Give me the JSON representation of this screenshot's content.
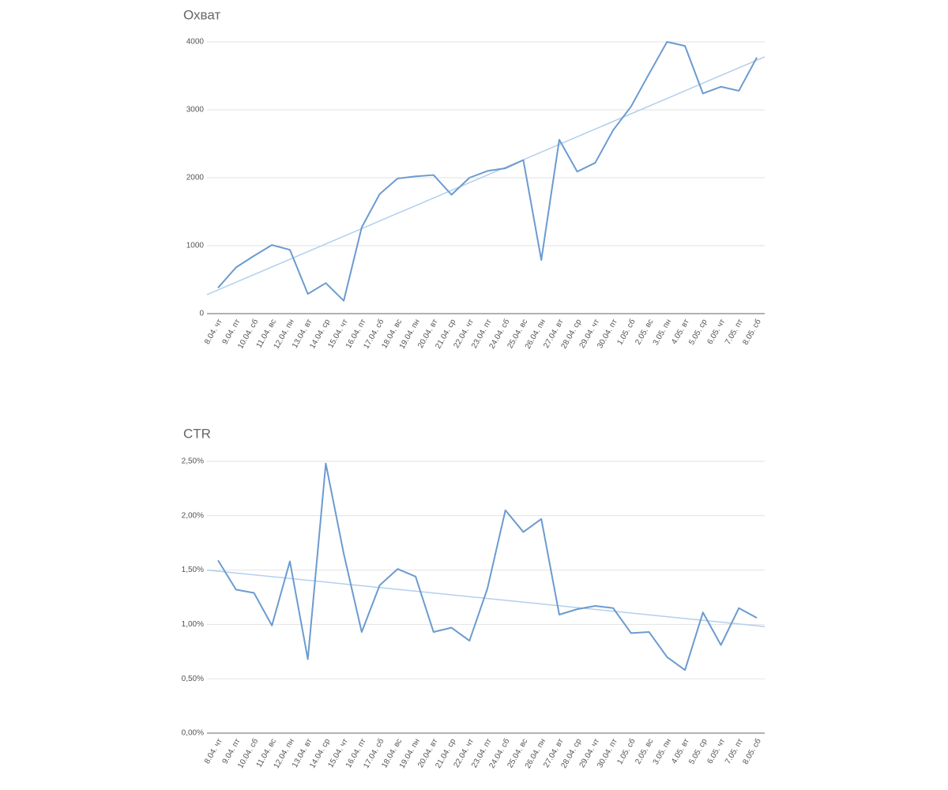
{
  "chart_data": [
    {
      "type": "line",
      "title": "Охват",
      "categories": [
        "8.04. чт",
        "9.04. пт",
        "10.04. сб",
        "11.04. вс",
        "12.04. пн",
        "13.04. вт",
        "14.04. ср",
        "15.04. чт",
        "16.04. пт",
        "17.04. сб",
        "18.04. вс",
        "19.04. пн",
        "20.04. вт",
        "21.04. ср",
        "22.04. чт",
        "23.04. пт",
        "24.04. сб",
        "25.04. вс",
        "26.04. пн",
        "27.04. вт",
        "28.04. ср",
        "29.04. чт",
        "30.04. пт",
        "1.05. сб",
        "2.05. вс",
        "3.05. пн",
        "4.05. вт",
        "5.05. ср",
        "6.05. чт",
        "7.05. пт",
        "8.05. сб"
      ],
      "series": [
        {
          "color": "#6b9bd0",
          "values": [
            380,
            680,
            850,
            1010,
            940,
            290,
            450,
            190,
            1270,
            1760,
            1990,
            2020,
            2040,
            1750,
            2000,
            2100,
            2140,
            2260,
            790,
            2560,
            2090,
            2220,
            2700,
            3050,
            3530,
            4000,
            3940,
            3240,
            3340,
            3280,
            3770
          ]
        }
      ],
      "trendline": {
        "color": "#b3cfec",
        "values": [
          280,
          3780
        ]
      },
      "ylim": [
        0,
        4000
      ],
      "yticks": [
        0,
        1000,
        2000,
        3000,
        4000
      ],
      "grid": true
    },
    {
      "type": "line",
      "title": "CTR",
      "categories": [
        "8.04. чт",
        "9.04. пт",
        "10.04. сб",
        "11.04. вс",
        "12.04. пн",
        "13.04. вт",
        "14.04. ср",
        "15.04. чт",
        "16.04. пт",
        "17.04. сб",
        "18.04. вс",
        "19.04. пн",
        "20.04. вт",
        "21.04. ср",
        "22.04. чт",
        "23.04. пт",
        "24.04. сб",
        "25.04. вс",
        "26.04. пн",
        "27.04. вт",
        "28.04. ср",
        "29.04. чт",
        "30.04. пт",
        "1.05. сб",
        "2.05. вс",
        "3.05. пн",
        "4.05. вт",
        "5.05. ср",
        "6.05. чт",
        "7.05. пт",
        "8.05. сб"
      ],
      "series": [
        {
          "color": "#6b9bd0",
          "values": [
            1.59,
            1.32,
            1.29,
            0.99,
            1.58,
            0.68,
            2.48,
            1.65,
            0.93,
            1.36,
            1.51,
            1.44,
            0.93,
            0.97,
            0.85,
            1.33,
            2.05,
            1.85,
            1.97,
            1.09,
            1.14,
            1.17,
            1.15,
            0.92,
            0.93,
            0.7,
            0.58,
            1.11,
            0.81,
            1.15,
            1.06
          ]
        }
      ],
      "trendline": {
        "color": "#b3cfec",
        "values": [
          1.5,
          0.98
        ]
      },
      "ylim": [
        0,
        2.5
      ],
      "yticks": [
        {
          "value": 0,
          "label": "0,00%"
        },
        {
          "value": 0.5,
          "label": "0,50%"
        },
        {
          "value": 1,
          "label": "1,00%"
        },
        {
          "value": 1.5,
          "label": "1,50%"
        },
        {
          "value": 2,
          "label": "2,00%"
        },
        {
          "value": 2.5,
          "label": "2,50%"
        }
      ],
      "grid": true
    }
  ]
}
